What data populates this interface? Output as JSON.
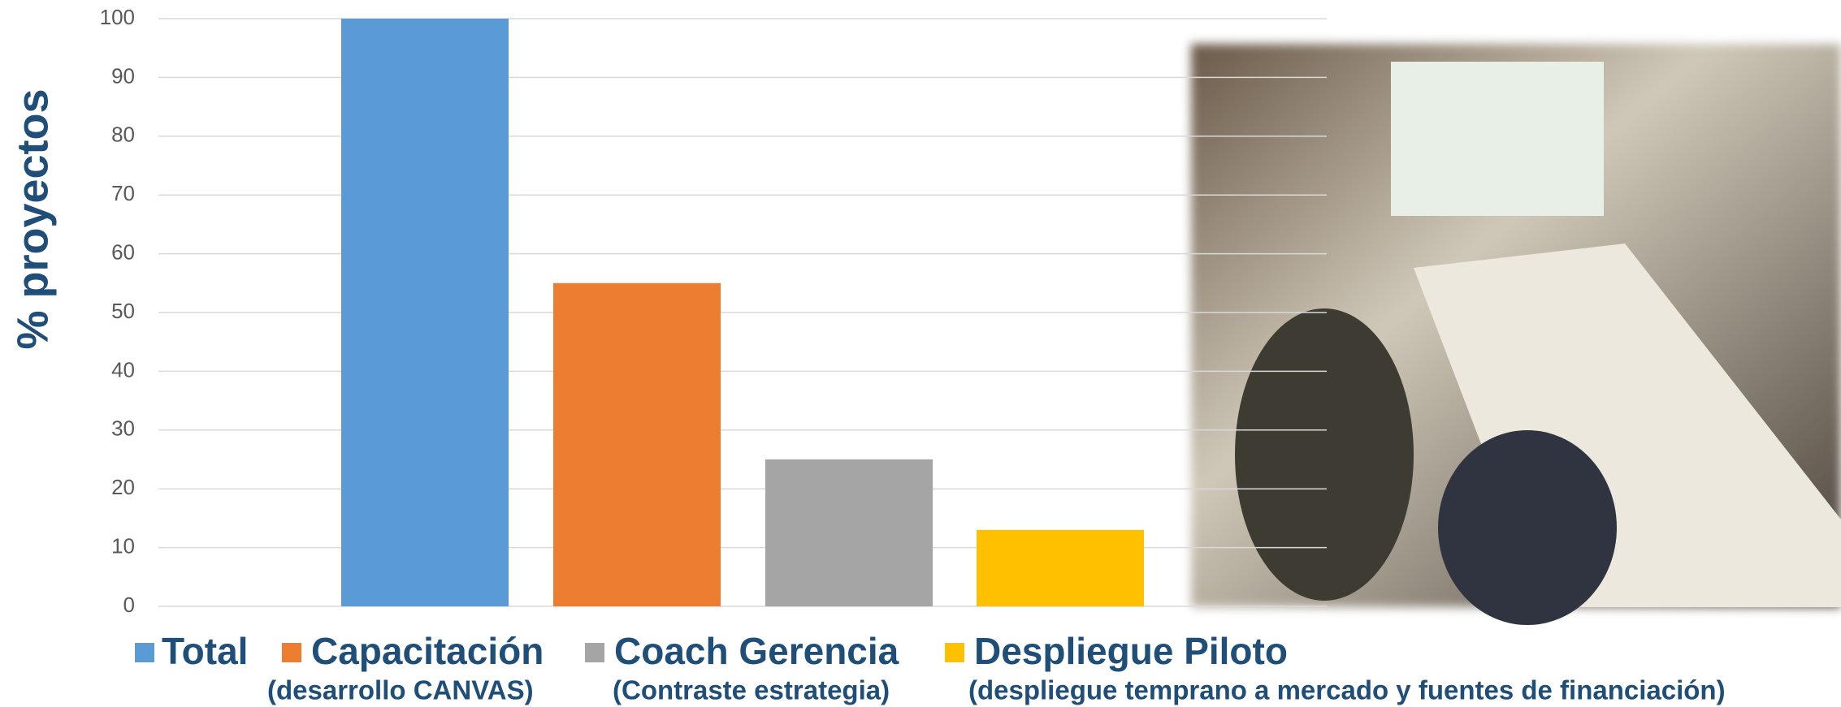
{
  "chart_data": {
    "type": "bar",
    "y_label": "% proyectos",
    "categories": [
      null
    ],
    "series": [
      {
        "name": "Total",
        "color": "#5b9bd5",
        "values": [
          100
        ]
      },
      {
        "name": "Capacitación",
        "note": "(desarrollo CANVAS)",
        "color": "#ed7d31",
        "values": [
          55
        ]
      },
      {
        "name": "Coach Gerencia",
        "note": "(Contraste estrategia)",
        "color": "#a5a5a5",
        "values": [
          25
        ]
      },
      {
        "name": "Despliegue Piloto",
        "note": "(despliegue temprano a mercado y fuentes de financiación)",
        "color": "#ffc000",
        "values": [
          13
        ]
      }
    ],
    "ylim": [
      0,
      100
    ],
    "yticks": [
      0,
      10,
      20,
      30,
      40,
      50,
      60,
      70,
      80,
      90,
      100
    ],
    "grid": true
  }
}
